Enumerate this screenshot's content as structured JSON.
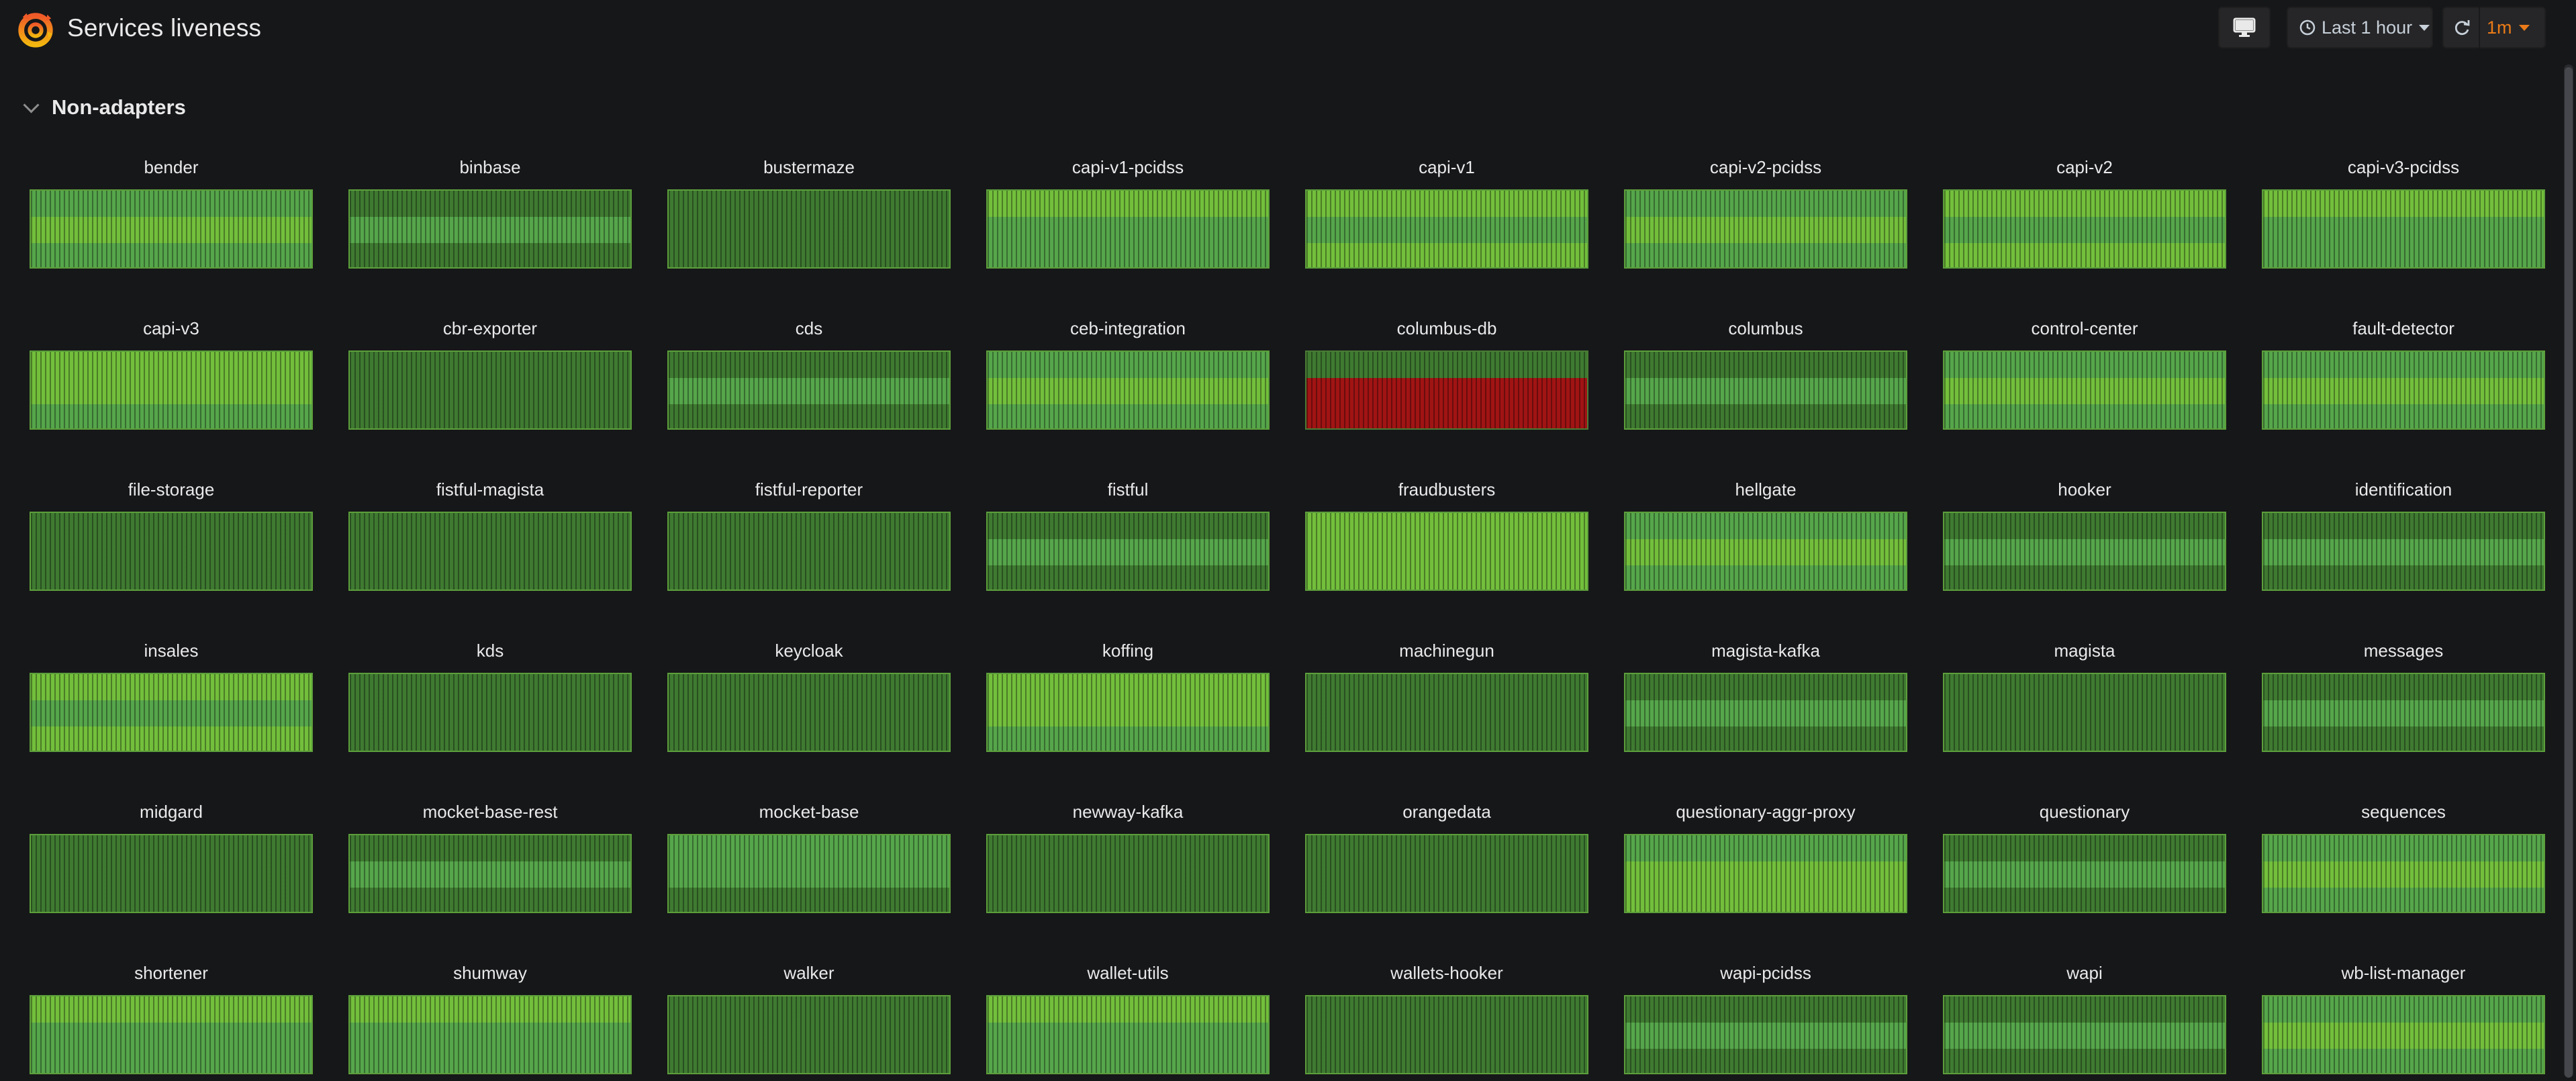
{
  "header": {
    "title": "Services liveness",
    "time_range": "Last 1 hour",
    "refresh_interval": "1m"
  },
  "colors": {
    "ok_bright": "#73bf3c",
    "ok_mid": "#56a64b",
    "ok_dim": "#3f7a31",
    "fail": "#a11414",
    "accent": "#eb7b18"
  },
  "row": {
    "title": "Non-adapters"
  },
  "panels": [
    {
      "name": "bender",
      "levels": [
        "mid",
        "bright",
        "mid"
      ]
    },
    {
      "name": "binbase",
      "levels": [
        "dim",
        "mid",
        "dim"
      ]
    },
    {
      "name": "bustermaze",
      "levels": [
        "dim",
        "dim",
        "dim"
      ]
    },
    {
      "name": "capi-v1-pcidss",
      "levels": [
        "bright",
        "mid",
        "mid"
      ]
    },
    {
      "name": "capi-v1",
      "levels": [
        "bright",
        "mid",
        "bright"
      ]
    },
    {
      "name": "capi-v2-pcidss",
      "levels": [
        "mid",
        "bright",
        "mid"
      ]
    },
    {
      "name": "capi-v2",
      "levels": [
        "bright",
        "mid",
        "bright"
      ]
    },
    {
      "name": "capi-v3-pcidss",
      "levels": [
        "bright",
        "mid",
        "mid"
      ]
    },
    {
      "name": "capi-v3",
      "levels": [
        "bright",
        "bright",
        "mid"
      ]
    },
    {
      "name": "cbr-exporter",
      "levels": [
        "dim",
        "dim",
        "dim"
      ]
    },
    {
      "name": "cds",
      "levels": [
        "dim",
        "mid",
        "dim"
      ]
    },
    {
      "name": "ceb-integration",
      "levels": [
        "mid",
        "bright",
        "mid"
      ]
    },
    {
      "name": "columbus-db",
      "levels": [
        "dim",
        "red",
        "red"
      ]
    },
    {
      "name": "columbus",
      "levels": [
        "dim",
        "mid",
        "dim"
      ]
    },
    {
      "name": "control-center",
      "levels": [
        "mid",
        "bright",
        "mid"
      ]
    },
    {
      "name": "fault-detector",
      "levels": [
        "mid",
        "bright",
        "mid"
      ]
    },
    {
      "name": "file-storage",
      "levels": [
        "dim",
        "dim",
        "dim"
      ]
    },
    {
      "name": "fistful-magista",
      "levels": [
        "dim",
        "dim",
        "dim"
      ]
    },
    {
      "name": "fistful-reporter",
      "levels": [
        "dim",
        "dim",
        "dim"
      ]
    },
    {
      "name": "fistful",
      "levels": [
        "dim",
        "mid",
        "dim"
      ]
    },
    {
      "name": "fraudbusters",
      "levels": [
        "bright",
        "bright",
        "bright"
      ]
    },
    {
      "name": "hellgate",
      "levels": [
        "mid",
        "bright",
        "mid"
      ]
    },
    {
      "name": "hooker",
      "levels": [
        "dim",
        "mid",
        "dim"
      ]
    },
    {
      "name": "identification",
      "levels": [
        "dim",
        "mid",
        "dim"
      ]
    },
    {
      "name": "insales",
      "levels": [
        "bright",
        "mid",
        "bright"
      ]
    },
    {
      "name": "kds",
      "levels": [
        "dim",
        "dim",
        "dim"
      ]
    },
    {
      "name": "keycloak",
      "levels": [
        "dim",
        "dim",
        "dim"
      ]
    },
    {
      "name": "koffing",
      "levels": [
        "bright",
        "bright",
        "mid"
      ]
    },
    {
      "name": "machinegun",
      "levels": [
        "dim",
        "dim",
        "dim"
      ]
    },
    {
      "name": "magista-kafka",
      "levels": [
        "dim",
        "mid",
        "dim"
      ]
    },
    {
      "name": "magista",
      "levels": [
        "dim",
        "dim",
        "dim"
      ]
    },
    {
      "name": "messages",
      "levels": [
        "dim",
        "mid",
        "dim"
      ]
    },
    {
      "name": "midgard",
      "levels": [
        "dim",
        "dim",
        "dim"
      ]
    },
    {
      "name": "mocket-base-rest",
      "levels": [
        "dim",
        "mid",
        "dim"
      ]
    },
    {
      "name": "mocket-base",
      "levels": [
        "mid",
        "mid",
        "dim"
      ]
    },
    {
      "name": "newway-kafka",
      "levels": [
        "dim",
        "dim",
        "dim"
      ]
    },
    {
      "name": "orangedata",
      "levels": [
        "dim",
        "dim",
        "dim"
      ]
    },
    {
      "name": "questionary-aggr-proxy",
      "levels": [
        "mid",
        "bright",
        "bright"
      ]
    },
    {
      "name": "questionary",
      "levels": [
        "dim",
        "mid",
        "dim"
      ]
    },
    {
      "name": "sequences",
      "levels": [
        "mid",
        "bright",
        "mid"
      ]
    },
    {
      "name": "shortener",
      "levels": [
        "bright",
        "mid",
        "mid"
      ]
    },
    {
      "name": "shumway",
      "levels": [
        "bright",
        "mid",
        "mid"
      ]
    },
    {
      "name": "walker",
      "levels": [
        "dim",
        "dim",
        "dim"
      ]
    },
    {
      "name": "wallet-utils",
      "levels": [
        "bright",
        "mid",
        "mid"
      ]
    },
    {
      "name": "wallets-hooker",
      "levels": [
        "dim",
        "dim",
        "dim"
      ]
    },
    {
      "name": "wapi-pcidss",
      "levels": [
        "dim",
        "mid",
        "dim"
      ]
    },
    {
      "name": "wapi",
      "levels": [
        "dim",
        "mid",
        "dim"
      ]
    },
    {
      "name": "wb-list-manager",
      "levels": [
        "mid",
        "bright",
        "mid"
      ]
    }
  ]
}
